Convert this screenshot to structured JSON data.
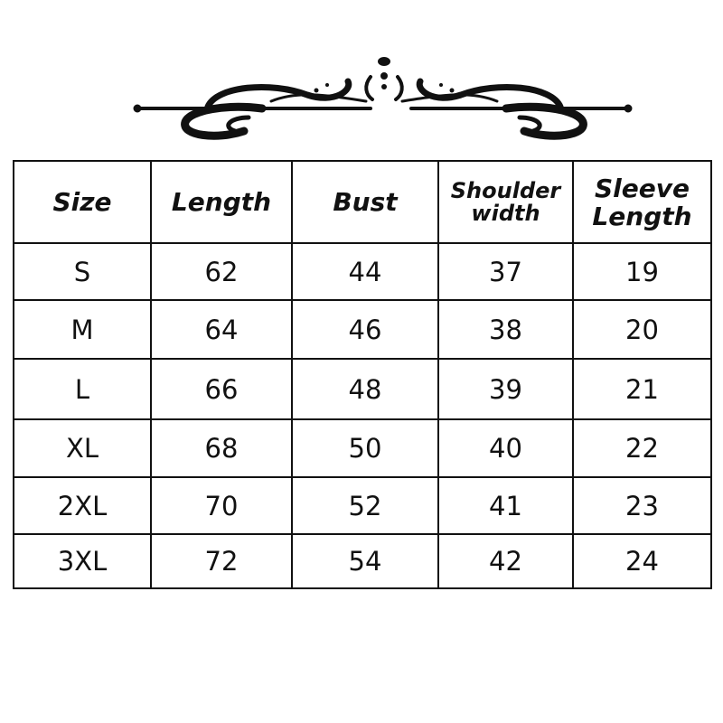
{
  "size_chart": {
    "headers": [
      "Size",
      "Length",
      "Bust",
      "Shoulder width",
      "Sleeve Length"
    ],
    "rows": [
      [
        "S",
        "62",
        "44",
        "37",
        "19"
      ],
      [
        "M",
        "64",
        "46",
        "38",
        "20"
      ],
      [
        "L",
        "66",
        "48",
        "39",
        "21"
      ],
      [
        "XL",
        "68",
        "50",
        "40",
        "22"
      ],
      [
        "2XL",
        "70",
        "52",
        "41",
        "23"
      ],
      [
        "3XL",
        "72",
        "54",
        "42",
        "24"
      ]
    ]
  },
  "decoration": {
    "icon": "ornamental-flourish-divider",
    "color": "#111111"
  }
}
